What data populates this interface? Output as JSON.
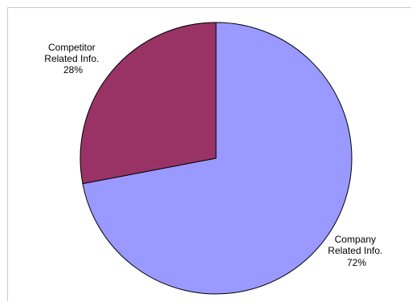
{
  "chart_data": {
    "type": "pie",
    "slices": [
      {
        "label_line1": "Company",
        "label_line2": "Related Info.",
        "percent_label": "72%",
        "value": 72,
        "color": "#9999ff"
      },
      {
        "label_line1": "Competitor",
        "label_line2": "Related Info.",
        "percent_label": "28%",
        "value": 28,
        "color": "#993366"
      }
    ]
  }
}
